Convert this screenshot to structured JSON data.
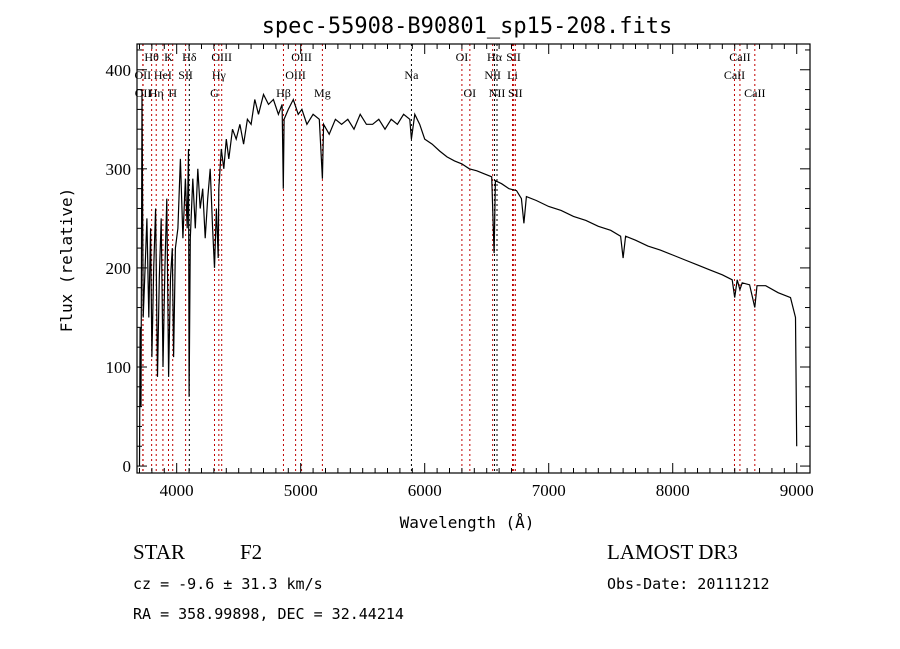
{
  "chart_data": {
    "type": "line",
    "title": "spec-55908-B90801_sp15-208.fits",
    "xlabel": "Wavelength (Å)",
    "ylabel": "Flux (relative)",
    "xlim": [
      3680,
      9107
    ],
    "ylim": [
      -7,
      426
    ],
    "xticks": [
      4000,
      5000,
      6000,
      7000,
      8000,
      9000
    ],
    "yticks": [
      0,
      100,
      200,
      300,
      400
    ],
    "grid": false,
    "series": [
      {
        "name": "spectrum",
        "points": [
          [
            3700,
            0
          ],
          [
            3705,
            140
          ],
          [
            3712,
            60
          ],
          [
            3720,
            380
          ],
          [
            3730,
            150
          ],
          [
            3745,
            200
          ],
          [
            3760,
            250
          ],
          [
            3775,
            150
          ],
          [
            3790,
            240
          ],
          [
            3800,
            110
          ],
          [
            3815,
            200
          ],
          [
            3830,
            260
          ],
          [
            3845,
            90
          ],
          [
            3860,
            190
          ],
          [
            3875,
            250
          ],
          [
            3890,
            100
          ],
          [
            3905,
            200
          ],
          [
            3920,
            270
          ],
          [
            3935,
            90
          ],
          [
            3950,
            190
          ],
          [
            3965,
            220
          ],
          [
            3975,
            110
          ],
          [
            3990,
            220
          ],
          [
            4010,
            240
          ],
          [
            4030,
            310
          ],
          [
            4050,
            230
          ],
          [
            4070,
            290
          ],
          [
            4085,
            240
          ],
          [
            4095,
            320
          ],
          [
            4100,
            70
          ],
          [
            4110,
            230
          ],
          [
            4130,
            290
          ],
          [
            4150,
            240
          ],
          [
            4170,
            300
          ],
          [
            4190,
            260
          ],
          [
            4210,
            280
          ],
          [
            4230,
            230
          ],
          [
            4250,
            270
          ],
          [
            4270,
            300
          ],
          [
            4290,
            240
          ],
          [
            4305,
            200
          ],
          [
            4320,
            260
          ],
          [
            4335,
            210
          ],
          [
            4340,
            280
          ],
          [
            4360,
            320
          ],
          [
            4380,
            300
          ],
          [
            4400,
            330
          ],
          [
            4420,
            310
          ],
          [
            4450,
            340
          ],
          [
            4480,
            330
          ],
          [
            4510,
            345
          ],
          [
            4540,
            325
          ],
          [
            4570,
            350
          ],
          [
            4600,
            345
          ],
          [
            4630,
            370
          ],
          [
            4660,
            355
          ],
          [
            4700,
            375
          ],
          [
            4740,
            365
          ],
          [
            4780,
            370
          ],
          [
            4820,
            355
          ],
          [
            4850,
            365
          ],
          [
            4860,
            280
          ],
          [
            4866,
            350
          ],
          [
            4900,
            360
          ],
          [
            4940,
            370
          ],
          [
            4980,
            355
          ],
          [
            5010,
            360
          ],
          [
            5050,
            345
          ],
          [
            5100,
            355
          ],
          [
            5150,
            350
          ],
          [
            5175,
            290
          ],
          [
            5185,
            345
          ],
          [
            5230,
            335
          ],
          [
            5280,
            350
          ],
          [
            5330,
            345
          ],
          [
            5380,
            350
          ],
          [
            5430,
            340
          ],
          [
            5480,
            355
          ],
          [
            5530,
            345
          ],
          [
            5580,
            345
          ],
          [
            5630,
            350
          ],
          [
            5680,
            340
          ],
          [
            5730,
            350
          ],
          [
            5780,
            345
          ],
          [
            5830,
            355
          ],
          [
            5880,
            350
          ],
          [
            5893,
            330
          ],
          [
            5920,
            355
          ],
          [
            5960,
            345
          ],
          [
            6000,
            330
          ],
          [
            6060,
            325
          ],
          [
            6120,
            318
          ],
          [
            6180,
            312
          ],
          [
            6240,
            308
          ],
          [
            6300,
            305
          ],
          [
            6360,
            300
          ],
          [
            6420,
            298
          ],
          [
            6480,
            295
          ],
          [
            6540,
            292
          ],
          [
            6560,
            215
          ],
          [
            6570,
            288
          ],
          [
            6620,
            285
          ],
          [
            6680,
            280
          ],
          [
            6740,
            278
          ],
          [
            6780,
            270
          ],
          [
            6800,
            245
          ],
          [
            6820,
            272
          ],
          [
            6900,
            268
          ],
          [
            7000,
            262
          ],
          [
            7100,
            258
          ],
          [
            7200,
            252
          ],
          [
            7300,
            248
          ],
          [
            7400,
            242
          ],
          [
            7500,
            238
          ],
          [
            7580,
            232
          ],
          [
            7600,
            210
          ],
          [
            7620,
            232
          ],
          [
            7700,
            228
          ],
          [
            7800,
            222
          ],
          [
            7900,
            218
          ],
          [
            8000,
            213
          ],
          [
            8100,
            208
          ],
          [
            8200,
            203
          ],
          [
            8300,
            198
          ],
          [
            8400,
            193
          ],
          [
            8480,
            188
          ],
          [
            8500,
            170
          ],
          [
            8520,
            188
          ],
          [
            8542,
            178
          ],
          [
            8560,
            185
          ],
          [
            8620,
            183
          ],
          [
            8662,
            160
          ],
          [
            8680,
            182
          ],
          [
            8750,
            182
          ],
          [
            8850,
            175
          ],
          [
            8950,
            170
          ],
          [
            8990,
            150
          ],
          [
            9000,
            20
          ]
        ]
      }
    ],
    "lines": [
      {
        "label": "Hθ",
        "wl": 3798,
        "row": 1,
        "color": "#c00000"
      },
      {
        "label": "K",
        "wl": 3934,
        "row": 1,
        "color": "#c00000"
      },
      {
        "label": "Hδ",
        "wl": 4102,
        "row": 1,
        "color": "#000000"
      },
      {
        "label": "OIII",
        "wl": 4363,
        "row": 1,
        "color": "#c00000"
      },
      {
        "label": "OIII",
        "wl": 5007,
        "row": 1,
        "color": "#c00000"
      },
      {
        "label": "OI",
        "wl": 6300,
        "row": 1,
        "color": "#c00000"
      },
      {
        "label": "Hα",
        "wl": 6563,
        "row": 1,
        "color": "#000000"
      },
      {
        "label": "SII",
        "wl": 6717,
        "row": 1,
        "color": "#c00000"
      },
      {
        "label": "CaII",
        "wl": 8542,
        "row": 1,
        "color": "#c00000"
      },
      {
        "label": "OII",
        "wl": 3727,
        "row": 2,
        "color": "#c00000"
      },
      {
        "label": "HeI",
        "wl": 3889,
        "row": 2,
        "color": "#c00000"
      },
      {
        "label": "SII",
        "wl": 4072,
        "row": 2,
        "color": "#c00000"
      },
      {
        "label": "Hγ",
        "wl": 4340,
        "row": 2,
        "color": "#c00000"
      },
      {
        "label": "OIII",
        "wl": 4959,
        "row": 2,
        "color": "#c00000"
      },
      {
        "label": "Na",
        "wl": 5893,
        "row": 2,
        "color": "#000000"
      },
      {
        "label": "NII",
        "wl": 6548,
        "row": 2,
        "color": "#c00000"
      },
      {
        "label": "Li",
        "wl": 6708,
        "row": 2,
        "color": "#c00000"
      },
      {
        "label": "CaII",
        "wl": 8498,
        "row": 2,
        "color": "#c00000"
      },
      {
        "label": "OII",
        "wl": 3729,
        "row": 3,
        "color": "#c00000"
      },
      {
        "label": "Hη",
        "wl": 3835,
        "row": 3,
        "color": "#c00000"
      },
      {
        "label": "H",
        "wl": 3968,
        "row": 3,
        "color": "#c00000"
      },
      {
        "label": "G",
        "wl": 4305,
        "row": 3,
        "color": "#c00000"
      },
      {
        "label": "Hβ",
        "wl": 4861,
        "row": 3,
        "color": "#c00000"
      },
      {
        "label": "Mg",
        "wl": 5175,
        "row": 3,
        "color": "#c00000"
      },
      {
        "label": "OI",
        "wl": 6364,
        "row": 3,
        "color": "#c00000"
      },
      {
        "label": "NII",
        "wl": 6583,
        "row": 3,
        "color": "#000000"
      },
      {
        "label": "SII",
        "wl": 6731,
        "row": 3,
        "color": "#c00000"
      },
      {
        "label": "CaII",
        "wl": 8662,
        "row": 3,
        "color": "#c00000"
      }
    ]
  },
  "info": {
    "object_class": "STAR",
    "subclass": "F2",
    "survey": "LAMOST DR3",
    "cz": "cz = -9.6 ± 31.3 km/s",
    "obs_date": "Obs-Date: 20111212",
    "coords": "RA = 358.99898, DEC =  32.44214"
  }
}
